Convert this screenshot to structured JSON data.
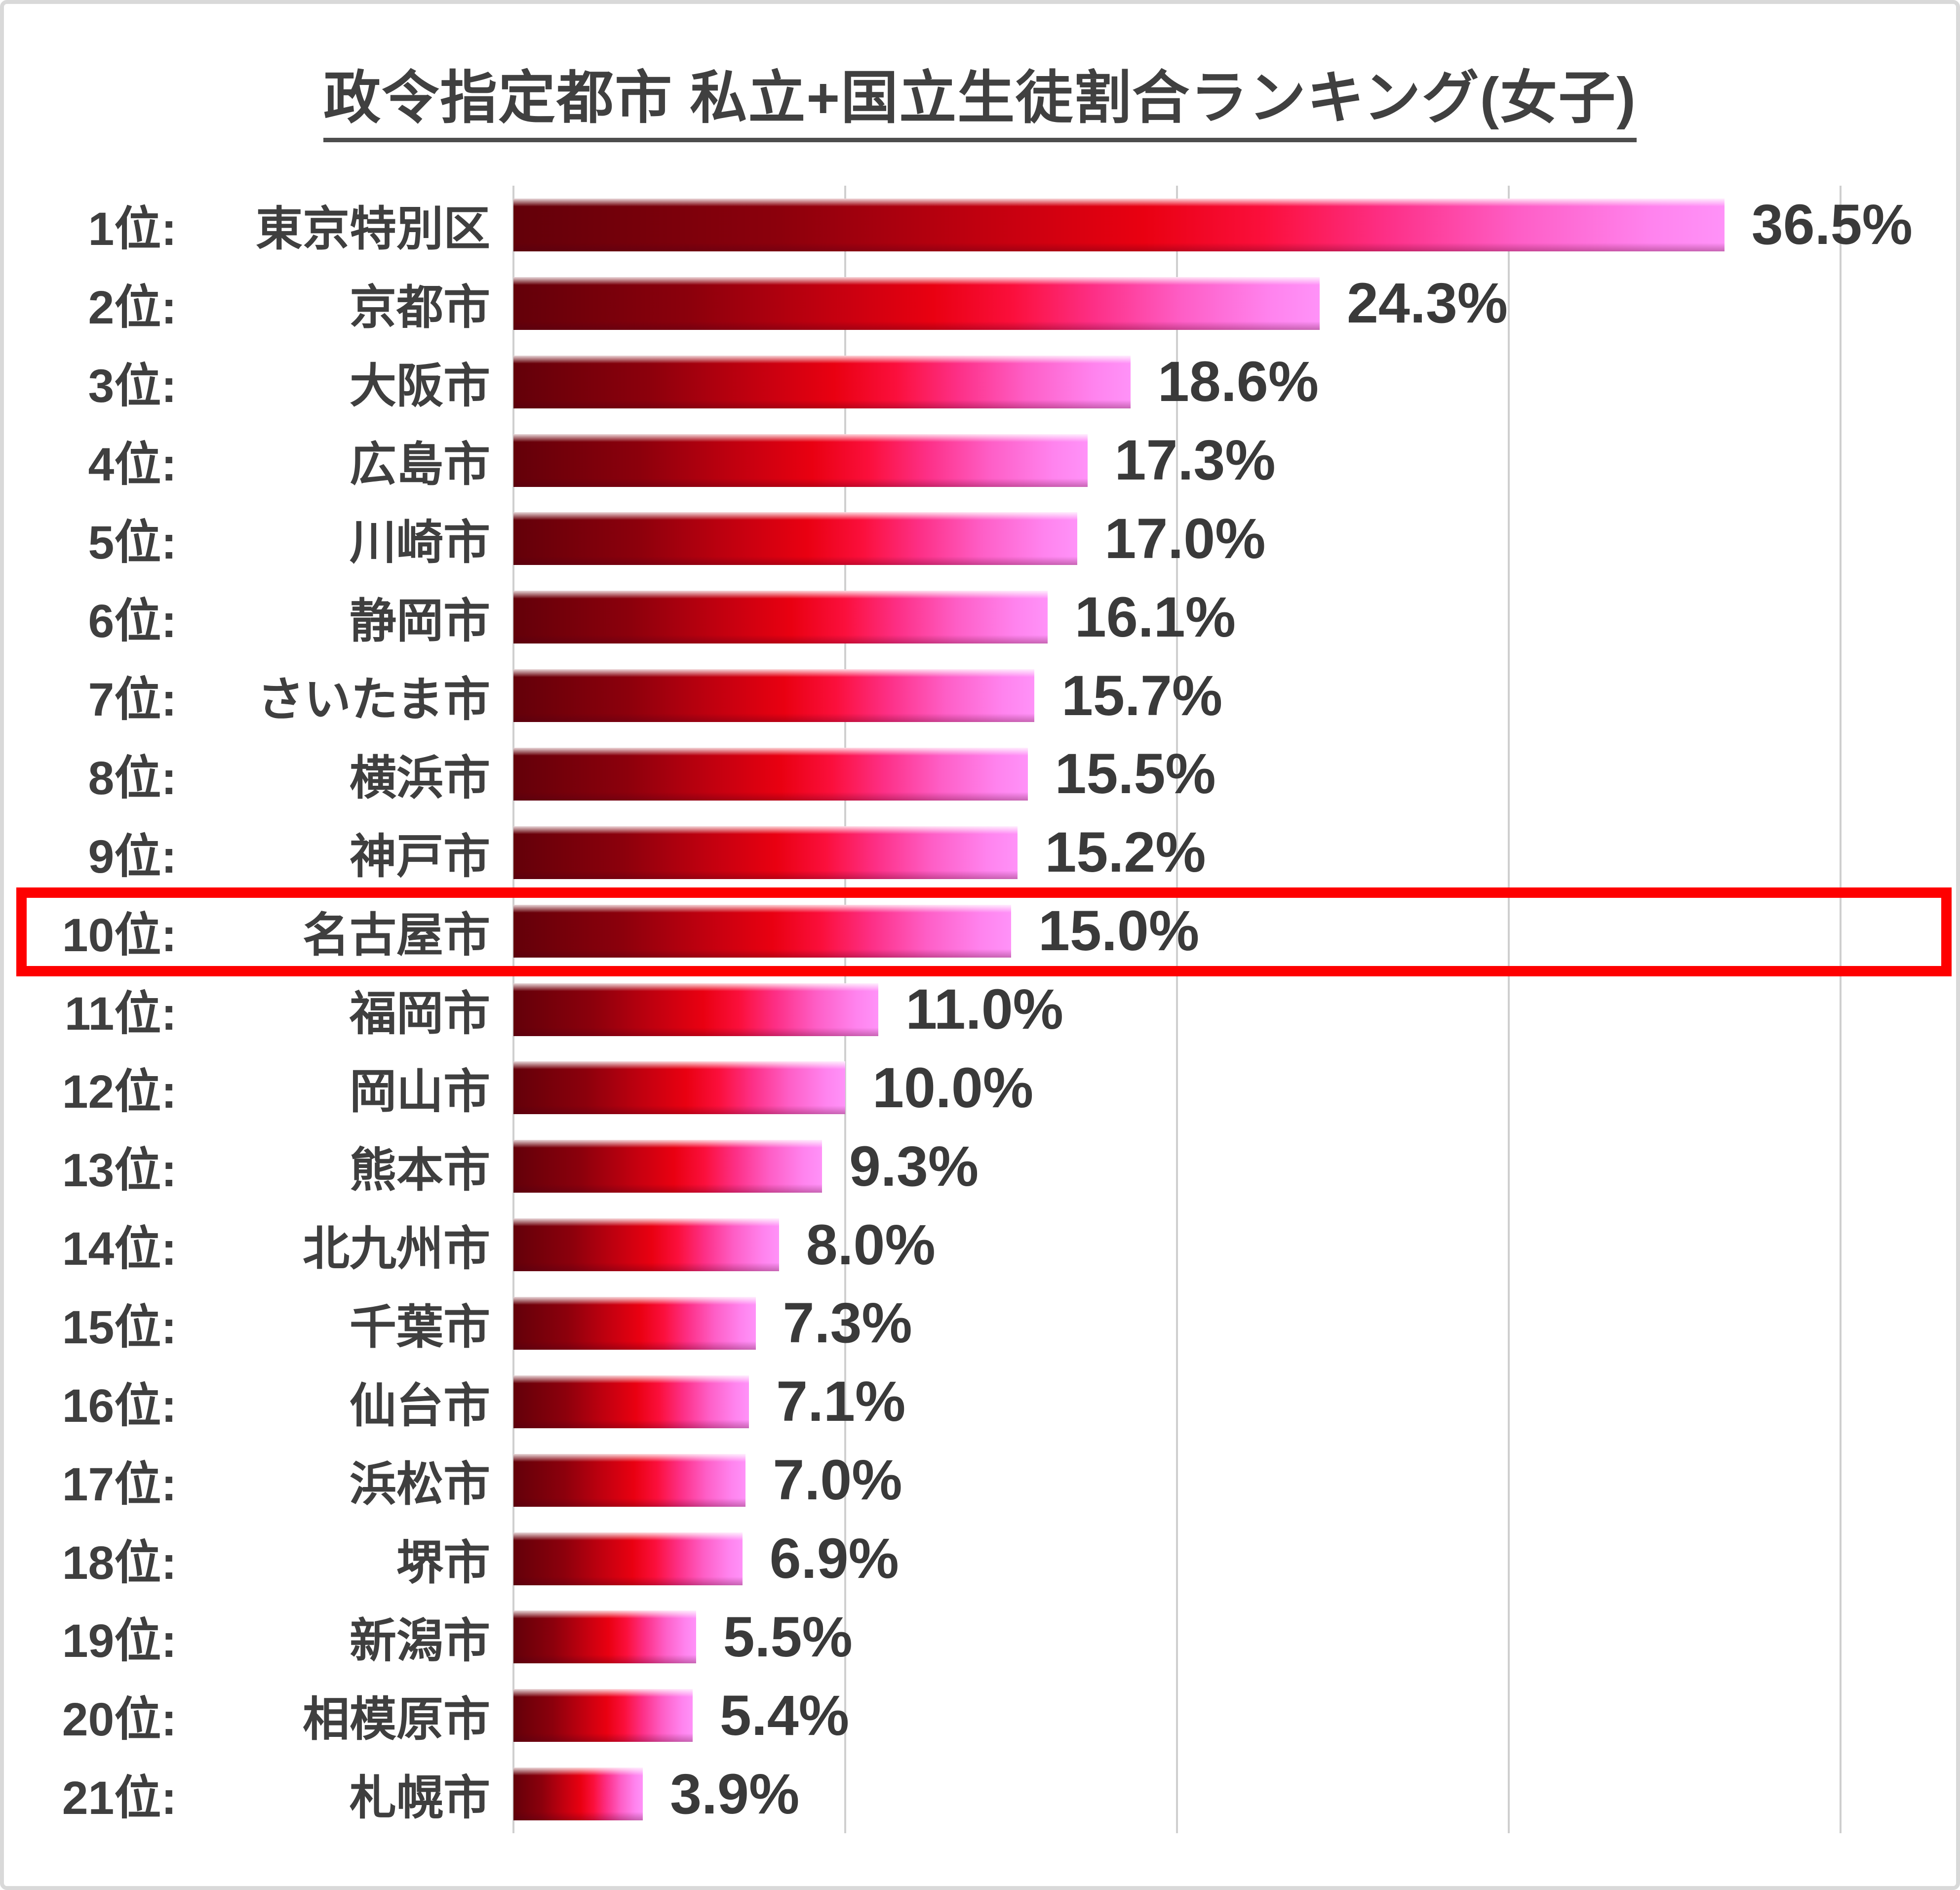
{
  "title": "政令指定都市 私立+国立生徒割合ランキング(女子)",
  "highlight": {
    "rank_index": 9,
    "color": "#fe0000"
  },
  "colors": {
    "text": "#3f3f3f",
    "title_text": "#404040",
    "gridline": "#cfcfcf",
    "frame_border": "#d9d9d9",
    "bar_gradient_start": "#630009",
    "bar_gradient_mid": "#e90011",
    "bar_gradient_end": "#ff92f8"
  },
  "chart_data": {
    "type": "bar",
    "orientation": "horizontal",
    "title": "政令指定都市 私立+国立生徒割合ランキング(女子)",
    "xlabel": "",
    "ylabel": "",
    "xlim": [
      0,
      40
    ],
    "gridline_interval_percent": 10,
    "grid": "vertical-lines",
    "legend": "none",
    "ranks": [
      "1位:",
      "2位:",
      "3位:",
      "4位:",
      "5位:",
      "6位:",
      "7位:",
      "8位:",
      "9位:",
      "10位:",
      "11位:",
      "12位:",
      "13位:",
      "14位:",
      "15位:",
      "16位:",
      "17位:",
      "18位:",
      "19位:",
      "20位:",
      "21位:"
    ],
    "categories": [
      "東京特別区",
      "京都市",
      "大阪市",
      "広島市",
      "川崎市",
      "静岡市",
      "さいたま市",
      "横浜市",
      "神戸市",
      "名古屋市",
      "福岡市",
      "岡山市",
      "熊本市",
      "北九州市",
      "千葉市",
      "仙台市",
      "浜松市",
      "堺市",
      "新潟市",
      "相模原市",
      "札幌市"
    ],
    "values": [
      36.5,
      24.3,
      18.6,
      17.3,
      17.0,
      16.1,
      15.7,
      15.5,
      15.2,
      15.0,
      11.0,
      10.0,
      9.3,
      8.0,
      7.3,
      7.1,
      7.0,
      6.9,
      5.5,
      5.4,
      3.9
    ],
    "value_labels": [
      "36.5%",
      "24.3%",
      "18.6%",
      "17.3%",
      "17.0%",
      "16.1%",
      "15.7%",
      "15.5%",
      "15.2%",
      "15.0%",
      "11.0%",
      "10.0%",
      "9.3%",
      "8.0%",
      "7.3%",
      "7.1%",
      "7.0%",
      "6.9%",
      "5.5%",
      "5.4%",
      "3.9%"
    ],
    "highlighted_category": "名古屋市",
    "highlighted_value": "15.0%"
  }
}
